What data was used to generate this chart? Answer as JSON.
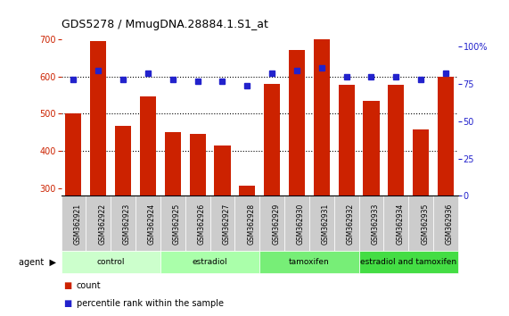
{
  "title": "GDS5278 / MmugDNA.28884.1.S1_at",
  "samples": [
    "GSM362921",
    "GSM362922",
    "GSM362923",
    "GSM362924",
    "GSM362925",
    "GSM362926",
    "GSM362927",
    "GSM362928",
    "GSM362929",
    "GSM362930",
    "GSM362931",
    "GSM362932",
    "GSM362933",
    "GSM362934",
    "GSM362935",
    "GSM362936"
  ],
  "counts": [
    500,
    695,
    468,
    547,
    450,
    445,
    415,
    308,
    580,
    670,
    700,
    578,
    535,
    578,
    458,
    600
  ],
  "percentile_ranks": [
    78,
    84,
    78,
    82,
    78,
    77,
    77,
    74,
    82,
    84,
    86,
    80,
    80,
    80,
    78,
    82
  ],
  "groups": [
    {
      "label": "control",
      "start": 0,
      "end": 3,
      "color": "#ccffcc"
    },
    {
      "label": "estradiol",
      "start": 4,
      "end": 7,
      "color": "#aaffaa"
    },
    {
      "label": "tamoxifen",
      "start": 8,
      "end": 11,
      "color": "#77ee77"
    },
    {
      "label": "estradiol and tamoxifen",
      "start": 12,
      "end": 15,
      "color": "#44dd44"
    }
  ],
  "bar_color": "#cc2200",
  "dot_color": "#2222cc",
  "ylim_left": [
    280,
    720
  ],
  "ylim_right": [
    0,
    110
  ],
  "yticks_left": [
    300,
    400,
    500,
    600,
    700
  ],
  "yticks_right": [
    0,
    25,
    50,
    75,
    100
  ],
  "grid_values": [
    400,
    500,
    600
  ],
  "background_color": "#ffffff",
  "bar_width": 0.65,
  "tick_box_color": "#cccccc",
  "legend_items": [
    {
      "label": "count",
      "color": "#cc2200"
    },
    {
      "label": "percentile rank within the sample",
      "color": "#2222cc"
    }
  ]
}
